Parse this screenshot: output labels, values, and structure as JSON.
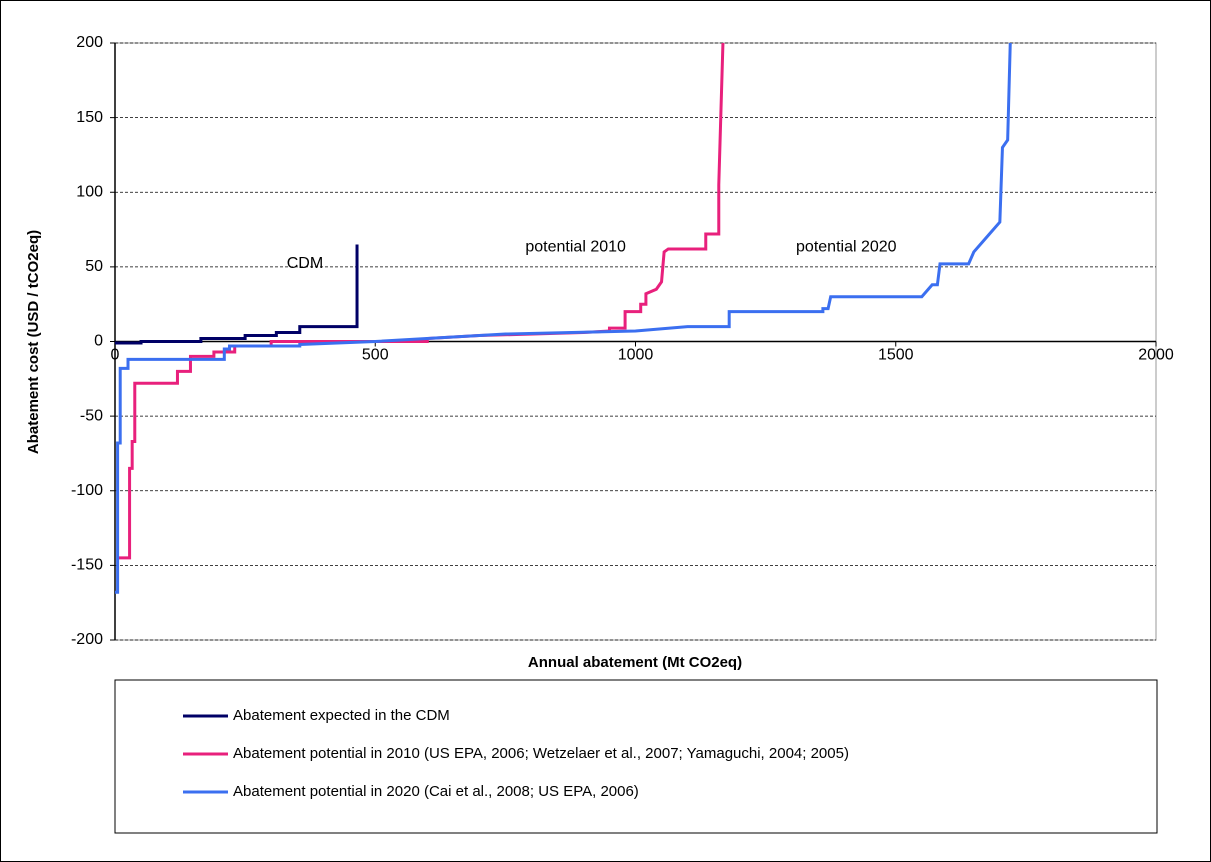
{
  "chart_data": {
    "type": "line",
    "x_label": "Annual abatement  (Mt CO2eq)",
    "y_label": "Abatement  cost (USD / tCO2eq)",
    "xlim": [
      0,
      2000
    ],
    "xticks": [
      0,
      500,
      1000,
      1500,
      2000
    ],
    "ylim": [
      -200,
      200
    ],
    "yticks": [
      -200,
      -150,
      -100,
      -50,
      0,
      50,
      100,
      150,
      200
    ],
    "grid": true,
    "annotations": [
      {
        "text": "CDM",
        "x": 365,
        "y": 52
      },
      {
        "text": "potential 2010",
        "x": 885,
        "y": 63
      },
      {
        "text": "potential 2020",
        "x": 1405,
        "y": 63
      }
    ],
    "series": [
      {
        "name": "Abatement expected in the CDM",
        "color": "#000066",
        "x": [
          0,
          50,
          50,
          165,
          165,
          250,
          250,
          310,
          310,
          355,
          355,
          465,
          465,
          465
        ],
        "values": [
          -1,
          -1,
          0,
          0,
          2,
          2,
          4,
          4,
          6,
          6,
          10,
          10,
          16,
          65
        ]
      },
      {
        "name": "Abatement potential in 2010 (US EPA, 2006; Wetzelaer et al., 2007; Yamaguchi, 2004; 2005)",
        "color": "#e8207c",
        "x": [
          5,
          28,
          28,
          33,
          33,
          38,
          38,
          120,
          120,
          145,
          145,
          190,
          190,
          230,
          230,
          300,
          300,
          600,
          600,
          700,
          900,
          950,
          950,
          980,
          980,
          1010,
          1010,
          1020,
          1020,
          1040,
          1050,
          1055,
          1063,
          1135,
          1135,
          1160,
          1160,
          1168
        ],
        "values": [
          -145,
          -145,
          -85,
          -85,
          -67,
          -67,
          -28,
          -28,
          -20,
          -20,
          -10,
          -10,
          -7,
          -7,
          -3,
          -3,
          0,
          0,
          2,
          4,
          6,
          7,
          9,
          9,
          20,
          20,
          25,
          25,
          32,
          35,
          40,
          60,
          62,
          62,
          72,
          72,
          105,
          200
        ]
      },
      {
        "name": "Abatement potential in 2020 (Cai et al., 2008; US EPA, 2006)",
        "color": "#3b6ff0",
        "x": [
          0,
          5,
          5,
          10,
          10,
          25,
          25,
          210,
          210,
          220,
          220,
          355,
          355,
          500,
          750,
          1000,
          1100,
          1180,
          1180,
          1360,
          1360,
          1370,
          1375,
          1550,
          1570,
          1580,
          1585,
          1640,
          1650,
          1680,
          1700,
          1705,
          1715,
          1720
        ],
        "values": [
          -168,
          -168,
          -68,
          -68,
          -18,
          -18,
          -12,
          -12,
          -5,
          -5,
          -3,
          -3,
          -2,
          0,
          5,
          7,
          10,
          10,
          20,
          20,
          22,
          22,
          30,
          30,
          38,
          38,
          52,
          52,
          60,
          72,
          80,
          130,
          135,
          200
        ]
      }
    ]
  }
}
